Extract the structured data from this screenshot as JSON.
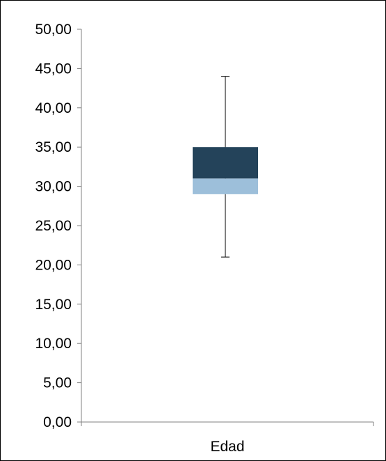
{
  "chart_data": {
    "type": "box",
    "categories": [
      "Edad"
    ],
    "series": [
      {
        "category": "Edad",
        "min": 21,
        "q1": 29,
        "median": 31,
        "q3": 35,
        "max": 44
      }
    ],
    "title": "",
    "xlabel": "",
    "ylabel": "",
    "ylim": [
      0,
      50
    ],
    "yticks": [
      0,
      5,
      10,
      15,
      20,
      25,
      30,
      35,
      40,
      45,
      50
    ],
    "ytick_labels": [
      "0,00",
      "5,00",
      "10,00",
      "15,00",
      "20,00",
      "25,00",
      "30,00",
      "35,00",
      "40,00",
      "45,00",
      "50,00"
    ],
    "grid": false,
    "legend": "none",
    "colors": {
      "upper_box": "#24435A",
      "lower_box": "#9DBFDA",
      "axis": "#808080",
      "whisker": "#000000"
    }
  }
}
